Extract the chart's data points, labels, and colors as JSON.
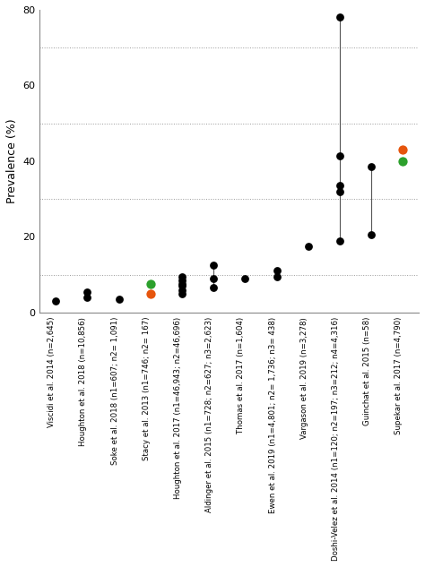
{
  "studies": [
    "Viscidi et al. 2014 (n=2,645)",
    "Houghton et al. 2018 (n=10,856)",
    "Soke et al. 2018 (n1=607; n2= 1,091)",
    "Stacy et al. 2013 (n1=746; n2= 167)",
    "Houghton et al. 2017 (n1=46,943; n2=46,696)",
    "Aldinger et al. 2015 (n1=728; n2=627; n3=2,623)",
    "Thomas et al. 2017 (n=1,604)",
    "Ewen et al. 2019 (n1=4,801; n2= 1,736; n3= 438)",
    "Vargason et al. 2019 (n=3,278)",
    "Doshi-Velez et al. 2014 (n1=120; n2=197; n3=212; n4=4,316)",
    "Guinchat et al. 2015 (n=58)",
    "Supekar et al. 2017 (n=4,790)"
  ],
  "data_points": {
    "Viscidi et al. 2014 (n=2,645)": {
      "black": [
        3.0
      ],
      "green": [],
      "orange": []
    },
    "Houghton et al. 2018 (n=10,856)": {
      "black": [
        4.0,
        5.5
      ],
      "green": [],
      "orange": []
    },
    "Soke et al. 2018 (n1=607; n2= 1,091)": {
      "black": [
        3.5
      ],
      "green": [],
      "orange": []
    },
    "Stacy et al. 2013 (n1=746; n2= 167)": {
      "black": [],
      "green": [
        7.5
      ],
      "orange": [
        5.0
      ]
    },
    "Houghton et al. 2017 (n1=46,943; n2=46,696)": {
      "black": [
        5.0,
        6.0,
        7.0,
        7.5,
        8.5,
        9.5
      ],
      "green": [],
      "orange": []
    },
    "Aldinger et al. 2015 (n1=728; n2=627; n3=2,623)": {
      "black": [
        6.5,
        9.0,
        12.5
      ],
      "green": [],
      "orange": [],
      "lines": [
        [
          6.5,
          12.5
        ]
      ]
    },
    "Thomas et al. 2017 (n=1,604)": {
      "black": [
        9.0
      ],
      "green": [],
      "orange": []
    },
    "Ewen et al. 2019 (n1=4,801; n2= 1,736; n3= 438)": {
      "black": [
        9.5,
        11.0
      ],
      "green": [],
      "orange": []
    },
    "Vargason et al. 2019 (n=3,278)": {
      "black": [
        17.5
      ],
      "green": [],
      "orange": []
    },
    "Doshi-Velez et al. 2014 (n1=120; n2=197; n3=212; n4=4,316)": {
      "black": [
        19.0,
        32.0,
        33.5,
        41.5,
        78.0
      ],
      "green": [],
      "orange": [],
      "lines": [
        [
          19.0,
          78.0
        ]
      ]
    },
    "Guinchat et al. 2015 (n=58)": {
      "black": [
        20.5,
        38.5
      ],
      "green": [],
      "orange": [],
      "lines": [
        [
          20.5,
          38.5
        ]
      ]
    },
    "Supekar et al. 2017 (n=4,790)": {
      "black": [],
      "green": [
        40.0
      ],
      "orange": [
        43.0
      ]
    }
  },
  "ylim": [
    0,
    80
  ],
  "yticks_major": [
    0,
    20,
    40,
    60,
    80
  ],
  "yticks_minor": [
    0,
    10,
    20,
    30,
    40,
    50,
    60,
    70,
    80
  ],
  "ylabel": "Prevalence (%)",
  "background_color": "#ffffff",
  "dot_size_black": 40,
  "dot_size_colored": 55,
  "grid_color": "#999999",
  "line_color": "#555555",
  "border_color": "#888888"
}
